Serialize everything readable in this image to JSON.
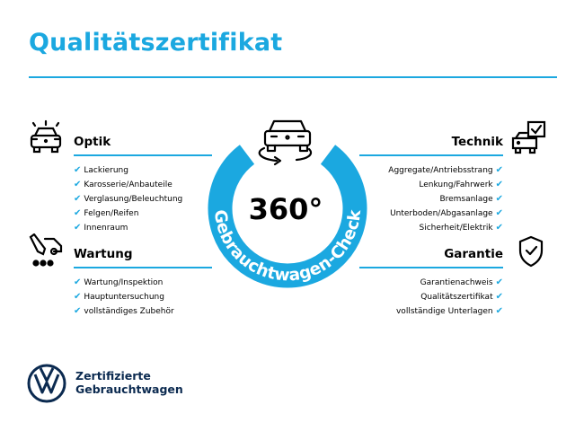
{
  "title": "Qualitätszertifikat",
  "center": {
    "value": "360°",
    "ring_text": "Gebrauchtwagen-Check"
  },
  "sections": {
    "optik": {
      "title": "Optik",
      "items": [
        "Lackierung",
        "Karosserie/Anbauteile",
        "Verglasung/Beleuchtung",
        "Felgen/Reifen",
        "Innenraum"
      ]
    },
    "wartung": {
      "title": "Wartung",
      "items": [
        "Wartung/Inspektion",
        "Hauptuntersuchung",
        "vollständiges Zubehör"
      ]
    },
    "technik": {
      "title": "Technik",
      "items": [
        "Aggregate/Antriebsstrang",
        "Lenkung/Fahrwerk",
        "Bremsanlage",
        "Unterboden/Abgasanlage",
        "Sicherheit/Elektrik"
      ]
    },
    "garantie": {
      "title": "Garantie",
      "items": [
        "Garantienachweis",
        "Qualitätszertifikat",
        "vollständige Unterlagen"
      ]
    }
  },
  "check_glyph": "✔",
  "brand": {
    "line1": "Zertifizierte",
    "line2": "Gebrauchtwagen"
  },
  "colors": {
    "accent": "#1ba8e0",
    "brand_navy": "#0b2a50"
  }
}
